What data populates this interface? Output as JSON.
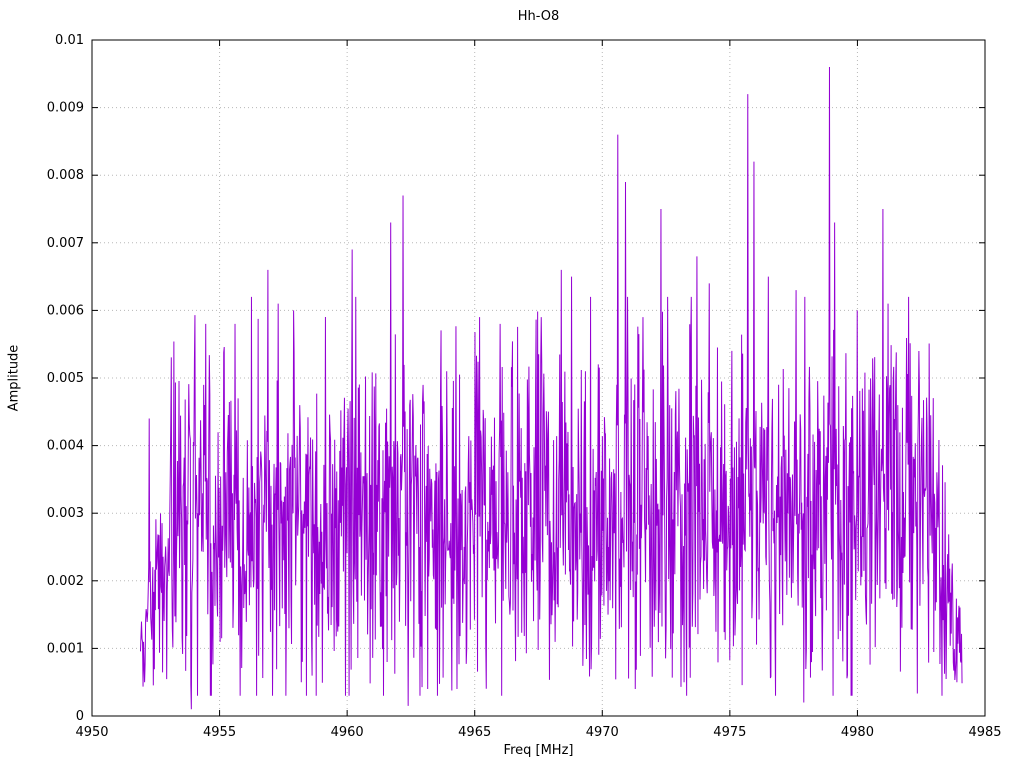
{
  "chart_data": {
    "type": "line",
    "title": "Hh-O8",
    "xlabel": "Freq [MHz]",
    "ylabel": "Amplitude",
    "xlim": [
      4950,
      4985
    ],
    "ylim": [
      0,
      0.01
    ],
    "grid": true,
    "legend": "none",
    "line_color": "#9400D3",
    "x_ticks": [
      4950,
      4955,
      4960,
      4965,
      4970,
      4975,
      4980,
      4985
    ],
    "x_tick_labels": [
      "4950",
      "4955",
      "4960",
      "4965",
      "4970",
      "4975",
      "4980",
      "4985"
    ],
    "y_ticks": [
      0,
      0.001,
      0.002,
      0.003,
      0.004,
      0.005,
      0.006,
      0.007,
      0.008,
      0.009,
      0.01
    ],
    "y_tick_labels": [
      "0",
      "0.001",
      "0.002",
      "0.003",
      "0.004",
      "0.005",
      "0.006",
      "0.007",
      "0.008",
      "0.009",
      "0.01"
    ],
    "data_range": [
      4951.9,
      4984.1
    ],
    "noise": {
      "seed": 1337,
      "points": 1600,
      "mean": 0.003,
      "std": 0.0012,
      "min": 0.0003,
      "max": 0.0062,
      "spike_prob": 0.012
    },
    "peaks": [
      [
        4952.25,
        0.0044
      ],
      [
        4954.45,
        0.0058
      ],
      [
        4955.6,
        0.0058
      ],
      [
        4956.9,
        0.0066
      ],
      [
        4957.3,
        0.0061
      ],
      [
        4957.9,
        0.006
      ],
      [
        4960.2,
        0.0069
      ],
      [
        4961.7,
        0.0073
      ],
      [
        4962.2,
        0.0077
      ],
      [
        4963.9,
        0.0051
      ],
      [
        4965.2,
        0.0059
      ],
      [
        4966.0,
        0.0058
      ],
      [
        4967.6,
        0.0059
      ],
      [
        4968.4,
        0.0066
      ],
      [
        4968.8,
        0.0065
      ],
      [
        4970.6,
        0.0086
      ],
      [
        4970.9,
        0.0079
      ],
      [
        4971.6,
        0.0059
      ],
      [
        4972.3,
        0.0075
      ],
      [
        4973.7,
        0.0068
      ],
      [
        4974.2,
        0.0064
      ],
      [
        4975.7,
        0.0092
      ],
      [
        4975.95,
        0.0082
      ],
      [
        4976.5,
        0.0065
      ],
      [
        4977.6,
        0.0063
      ],
      [
        4978.9,
        0.0096
      ],
      [
        4979.1,
        0.0073
      ],
      [
        4980.0,
        0.006
      ],
      [
        4981.0,
        0.0075
      ],
      [
        4981.2,
        0.0061
      ],
      [
        4982.4,
        0.0054
      ]
    ],
    "valleys": [
      [
        4953.9,
        0.0001
      ],
      [
        4958.2,
        0.0005
      ],
      [
        4962.4,
        0.00015
      ],
      [
        4964.3,
        0.0004
      ],
      [
        4971.3,
        0.0004
      ],
      [
        4973.2,
        0.0005
      ],
      [
        4977.9,
        0.0002
      ],
      [
        4979.8,
        0.0003
      ],
      [
        4983.9,
        0.0005
      ]
    ]
  }
}
